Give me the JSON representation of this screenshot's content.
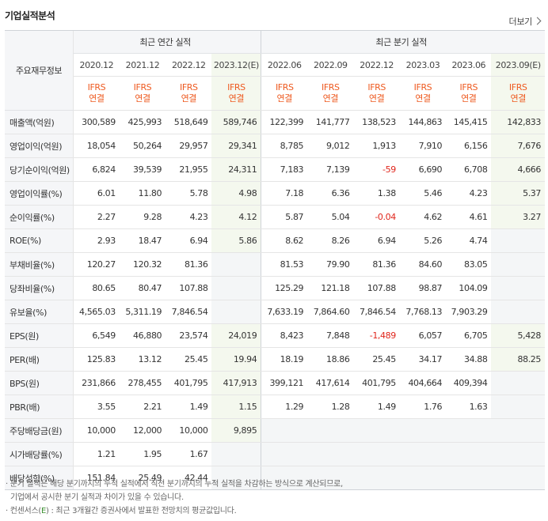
{
  "title": "기업실적분석",
  "more_label": "더보기",
  "header": {
    "row_label": "주요재무정보",
    "annual_group": "최근 연간 실적",
    "quarter_group": "최근 분기 실적",
    "annual_periods": [
      "2020.12",
      "2021.12",
      "2022.12",
      "2023.12(E)"
    ],
    "quarter_periods": [
      "2022.06",
      "2022.09",
      "2022.12",
      "2023.03",
      "2023.06",
      "2023.09(E)"
    ],
    "basis_line1": "IFRS",
    "basis_line2": "연결"
  },
  "rows": [
    {
      "label": "매출액(억원)",
      "annual": [
        "300,589",
        "425,993",
        "518,649",
        "589,746"
      ],
      "quarter": [
        "122,399",
        "141,777",
        "138,523",
        "144,863",
        "145,415",
        "142,833"
      ]
    },
    {
      "label": "영업이익(억원)",
      "annual": [
        "18,054",
        "50,264",
        "29,957",
        "29,341"
      ],
      "quarter": [
        "8,785",
        "9,012",
        "1,913",
        "7,910",
        "6,156",
        "7,676"
      ]
    },
    {
      "label": "당기순이익(억원)",
      "annual": [
        "6,824",
        "39,539",
        "21,955",
        "24,311"
      ],
      "quarter": [
        "7,183",
        "7,139",
        "-59",
        "6,690",
        "6,708",
        "4,666"
      ]
    },
    {
      "label": "영업이익률(%)",
      "annual": [
        "6.01",
        "11.80",
        "5.78",
        "4.98"
      ],
      "quarter": [
        "7.18",
        "6.36",
        "1.38",
        "5.46",
        "4.23",
        "5.37"
      ]
    },
    {
      "label": "순이익률(%)",
      "annual": [
        "2.27",
        "9.28",
        "4.23",
        "4.12"
      ],
      "quarter": [
        "5.87",
        "5.04",
        "-0.04",
        "4.62",
        "4.61",
        "3.27"
      ]
    },
    {
      "label": "ROE(%)",
      "annual": [
        "2.93",
        "18.47",
        "6.94",
        "5.86"
      ],
      "quarter": [
        "8.62",
        "8.26",
        "6.94",
        "5.26",
        "4.74",
        ""
      ]
    },
    {
      "label": "부채비율(%)",
      "annual": [
        "120.27",
        "120.32",
        "81.36",
        ""
      ],
      "quarter": [
        "81.53",
        "79.90",
        "81.36",
        "84.60",
        "83.05",
        ""
      ]
    },
    {
      "label": "당좌비율(%)",
      "annual": [
        "80.65",
        "80.47",
        "107.88",
        ""
      ],
      "quarter": [
        "125.29",
        "121.18",
        "107.88",
        "98.87",
        "104.09",
        ""
      ]
    },
    {
      "label": "유보율(%)",
      "annual": [
        "4,565.03",
        "5,311.19",
        "7,846.54",
        ""
      ],
      "quarter": [
        "7,633.19",
        "7,864.60",
        "7,846.54",
        "7,768.13",
        "7,903.29",
        ""
      ]
    },
    {
      "label": "EPS(원)",
      "annual": [
        "6,549",
        "46,880",
        "23,574",
        "24,019"
      ],
      "quarter": [
        "8,423",
        "7,848",
        "-1,489",
        "6,057",
        "6,705",
        "5,428"
      ]
    },
    {
      "label": "PER(배)",
      "annual": [
        "125.83",
        "13.12",
        "25.45",
        "19.94"
      ],
      "quarter": [
        "18.19",
        "18.86",
        "25.45",
        "34.17",
        "34.88",
        "88.25"
      ]
    },
    {
      "label": "BPS(원)",
      "annual": [
        "231,866",
        "278,455",
        "401,795",
        "417,913"
      ],
      "quarter": [
        "399,121",
        "417,614",
        "401,795",
        "404,664",
        "409,394",
        ""
      ]
    },
    {
      "label": "PBR(배)",
      "annual": [
        "3.55",
        "2.21",
        "1.49",
        "1.15"
      ],
      "quarter": [
        "1.29",
        "1.28",
        "1.49",
        "1.76",
        "1.63",
        ""
      ]
    },
    {
      "label": "주당배당금(원)",
      "annual": [
        "10,000",
        "12,000",
        "10,000",
        "9,895"
      ],
      "quarter": [
        "",
        "",
        "",
        "",
        "",
        ""
      ]
    },
    {
      "label": "시가배당률(%)",
      "annual": [
        "1.21",
        "1.95",
        "1.67",
        ""
      ],
      "quarter": [
        "",
        "",
        "",
        "",
        "",
        ""
      ]
    },
    {
      "label": "배당성향(%)",
      "annual": [
        "151.84",
        "25.49",
        "42.44",
        ""
      ],
      "quarter": [
        "",
        "",
        "",
        "",
        "",
        ""
      ]
    }
  ],
  "notes": {
    "line1": "· 분기 실적은 해당 분기까지의 누적 실적에서 직전 분기까지의 누적 실적을 차감하는 방식으로 계산되므로,",
    "line2": "  기업에서 공시한 분기 실적과 차이가 있을 수 있습니다.",
    "line3_prefix": "· 컨센서스(",
    "line3_e": "E",
    "line3_suffix": ") : 최근 3개월간 증권사에서 발표한 전망치의 평균값입니다."
  },
  "colors": {
    "negative": "#e0251b",
    "ifrs": "#ee5a20",
    "estimate_bg": "#f4f8ee",
    "consensus_e": "#3a8f2f"
  }
}
